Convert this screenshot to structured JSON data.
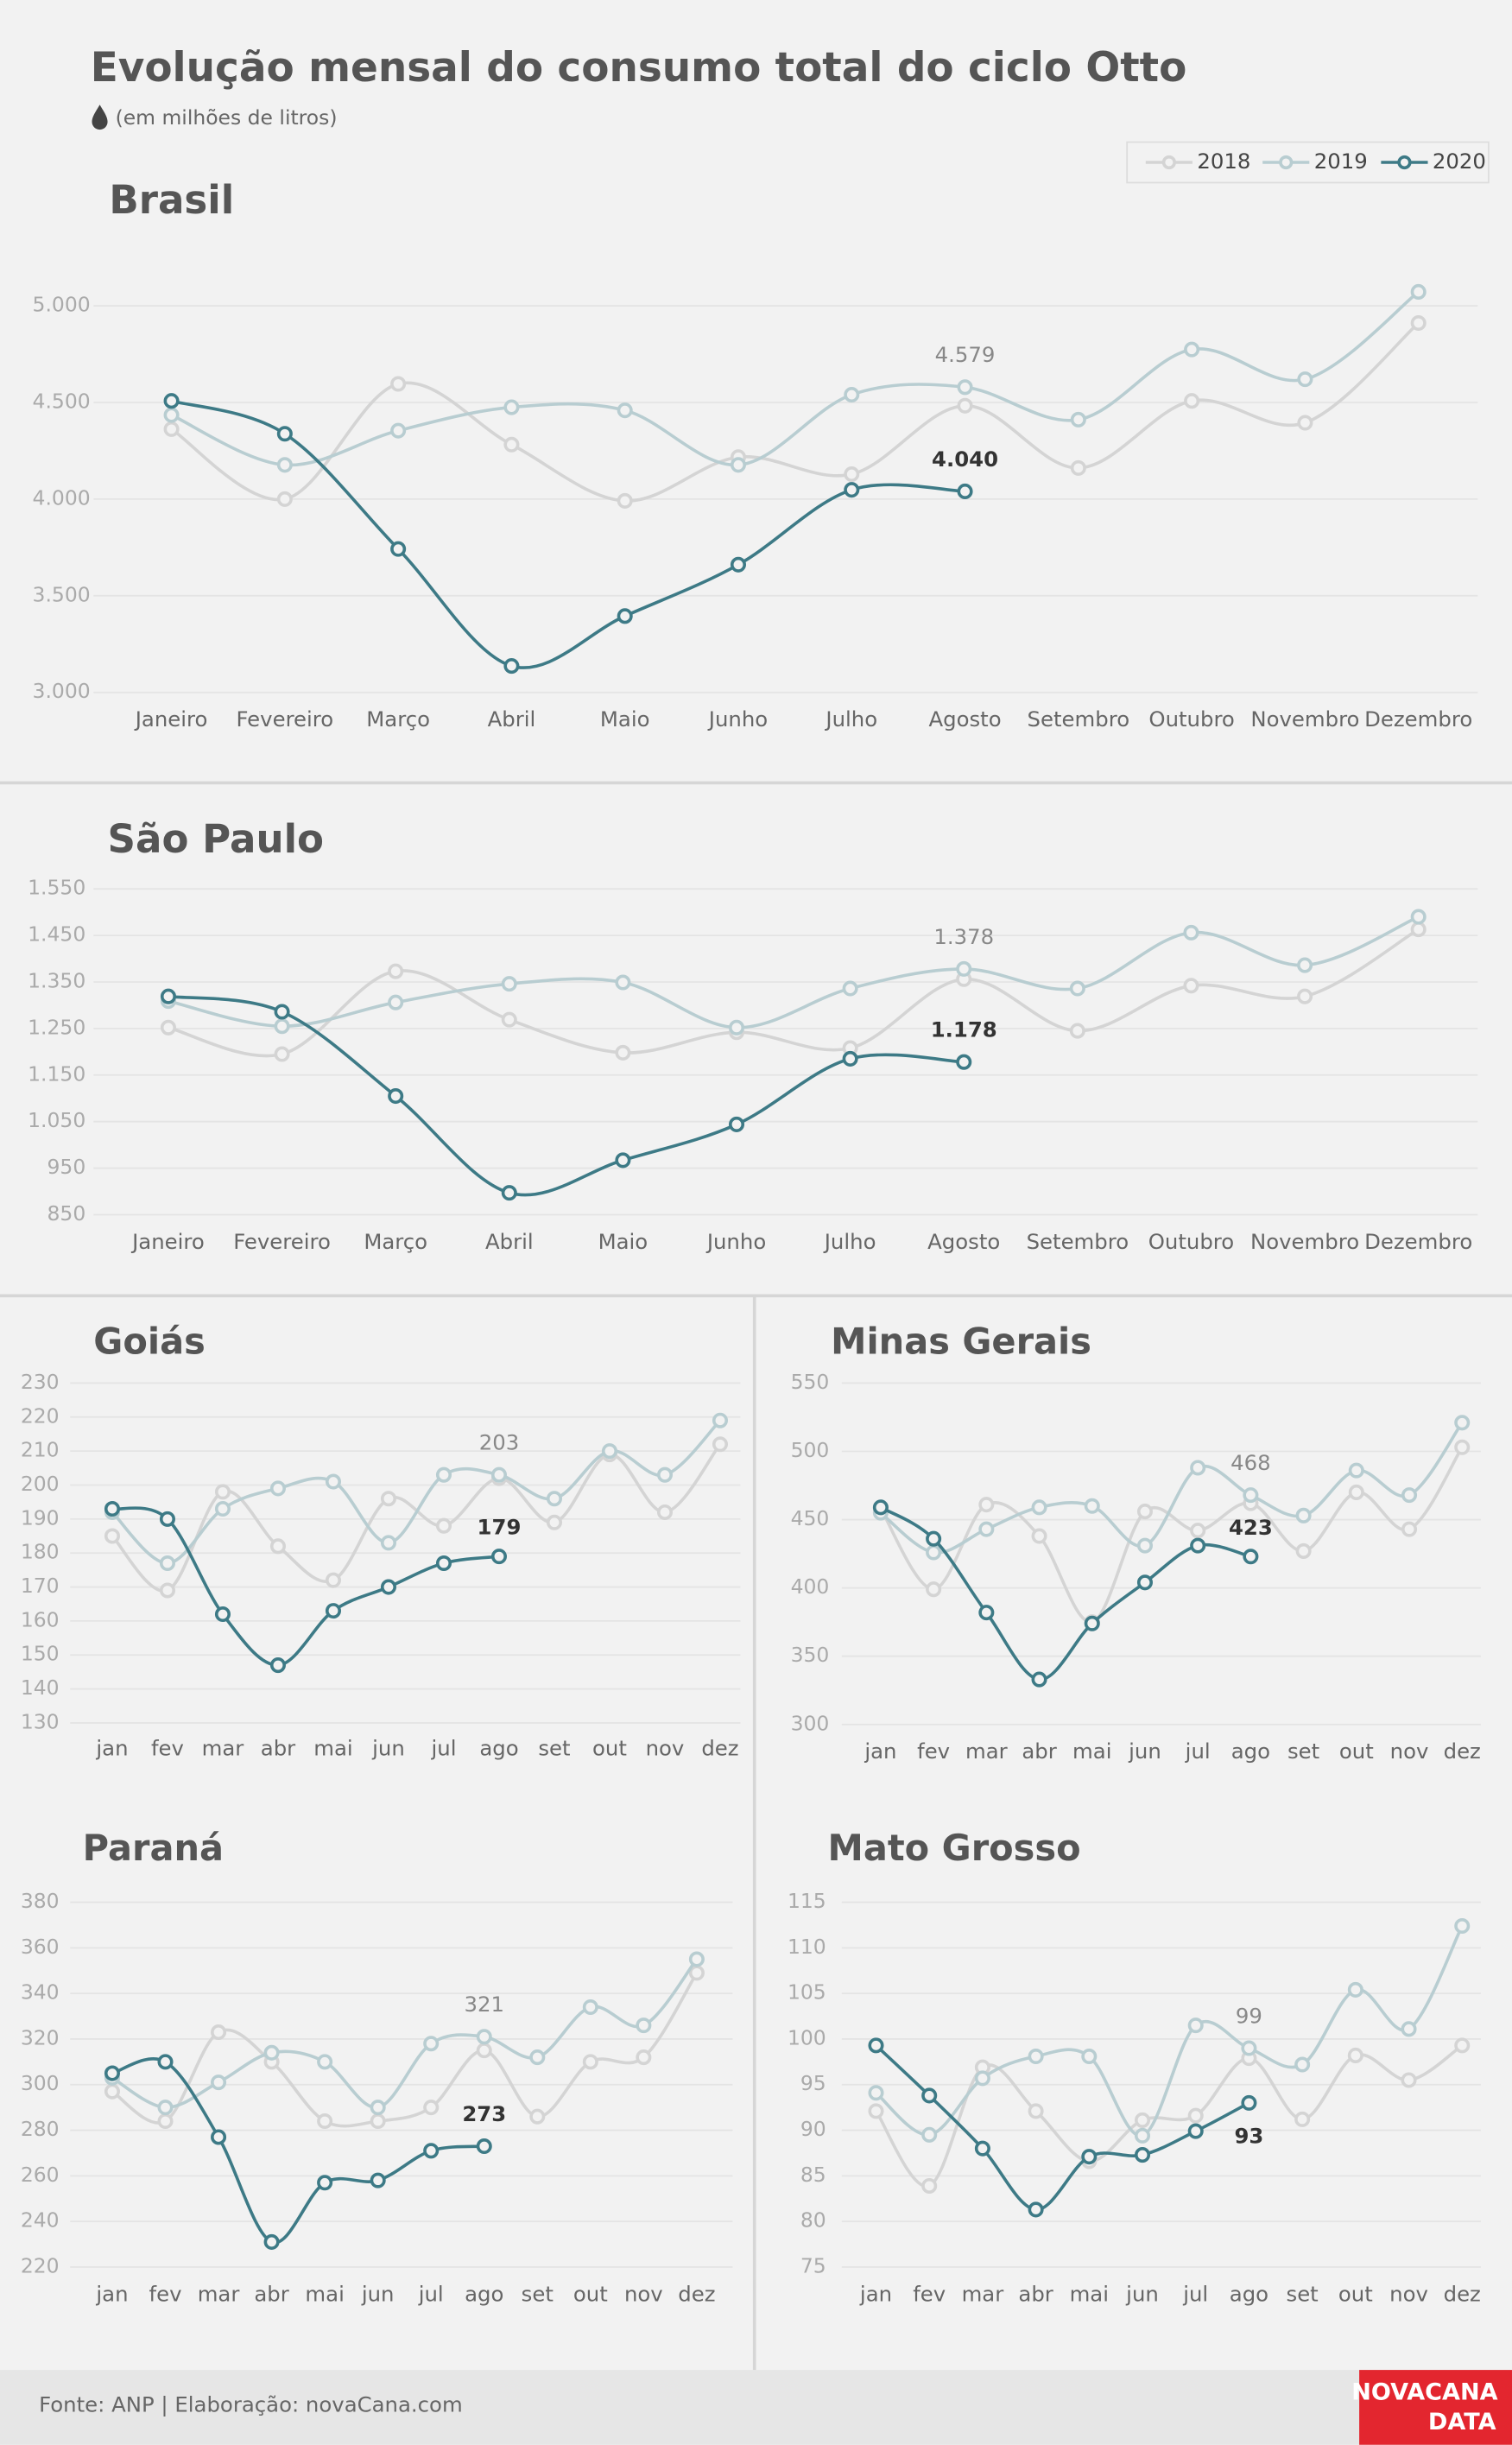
{
  "title": "Evolução mensal do consumo total do ciclo Otto",
  "subtitle": "(em milhões de litros)",
  "source": "Fonte: ANP | Elaboração: novaCana.com",
  "logo": [
    "NOVACANA",
    "DATA"
  ],
  "chart_data": [
    {
      "type": "line",
      "title": "Brasil",
      "categories": [
        "Janeiro",
        "Fevereiro",
        "Março",
        "Abril",
        "Maio",
        "Junho",
        "Julho",
        "Agosto",
        "Setembro",
        "Outubro",
        "Novembro",
        "Dezembro"
      ],
      "series": [
        {
          "name": "2018",
          "color": "#d4d4d4",
          "values": [
            4362,
            4000,
            4596,
            4282,
            3991,
            4217,
            4129,
            4483,
            4161,
            4508,
            4395,
            4911
          ]
        },
        {
          "name": "2019",
          "color": "#b8cdd1",
          "values": [
            4435,
            4177,
            4354,
            4475,
            4459,
            4177,
            4540,
            4579,
            4411,
            4774,
            4620,
            5072
          ],
          "value_labels": [
            null,
            null,
            null,
            null,
            null,
            null,
            null,
            "4.579",
            null,
            null,
            null,
            null
          ]
        },
        {
          "name": "2020",
          "color": "#3d7a86",
          "values": [
            4508,
            4338,
            3742,
            3137,
            3395,
            3661,
            4048,
            4040,
            null,
            null,
            null,
            null
          ],
          "value_labels": [
            null,
            null,
            null,
            null,
            null,
            null,
            null,
            "4.040",
            null,
            null,
            null,
            null
          ]
        }
      ],
      "ylim": [
        3000,
        5000
      ],
      "yticks": [
        {
          "value": 3000,
          "label": "3.000"
        },
        {
          "value": 3500,
          "label": "3.500"
        },
        {
          "value": 4000,
          "label": "4.000"
        },
        {
          "value": 4500,
          "label": "4.500"
        },
        {
          "value": 5000,
          "label": "5.000"
        }
      ],
      "grid": true
    },
    {
      "type": "line",
      "title": "São Paulo",
      "categories": [
        "Janeiro",
        "Fevereiro",
        "Março",
        "Abril",
        "Maio",
        "Junho",
        "Julho",
        "Agosto",
        "Setembro",
        "Outubro",
        "Novembro",
        "Dezembro"
      ],
      "series": [
        {
          "name": "2018",
          "color": "#d4d4d4",
          "values": [
            1252,
            1195,
            1373,
            1269,
            1198,
            1242,
            1208,
            1356,
            1245,
            1342,
            1319,
            1463
          ]
        },
        {
          "name": "2019",
          "color": "#b8cdd1",
          "values": [
            1309,
            1255,
            1306,
            1346,
            1349,
            1252,
            1336,
            1378,
            1336,
            1456,
            1386,
            1490
          ],
          "value_labels": [
            null,
            null,
            null,
            null,
            null,
            null,
            null,
            "1.378",
            null,
            null,
            null,
            null
          ]
        },
        {
          "name": "2020",
          "color": "#3d7a86",
          "values": [
            1319,
            1286,
            1105,
            897,
            967,
            1044,
            1185,
            1178,
            null,
            null,
            null,
            null
          ],
          "value_labels": [
            null,
            null,
            null,
            null,
            null,
            null,
            null,
            "1.178",
            null,
            null,
            null,
            null
          ]
        }
      ],
      "ylim": [
        850,
        1550
      ],
      "yticks": [
        850,
        950,
        {
          "value": 1050,
          "label": "1.050"
        },
        {
          "value": 1150,
          "label": "1.150"
        },
        {
          "value": 1250,
          "label": "1.250"
        },
        {
          "value": 1350,
          "label": "1.350"
        },
        {
          "value": 1450,
          "label": "1.450"
        },
        {
          "value": 1550,
          "label": "1.550"
        }
      ],
      "grid": true
    },
    {
      "type": "line",
      "title": "Goiás",
      "categories": [
        "jan",
        "fev",
        "mar",
        "abr",
        "mai",
        "jun",
        "jul",
        "ago",
        "set",
        "out",
        "nov",
        "dez"
      ],
      "series": [
        {
          "name": "2018",
          "color": "#d4d4d4",
          "values": [
            185,
            169,
            198,
            182,
            172,
            196,
            188,
            202,
            189,
            209,
            192,
            212
          ]
        },
        {
          "name": "2019",
          "color": "#b8cdd1",
          "values": [
            192,
            177,
            193,
            199,
            201,
            183,
            203,
            203,
            196,
            210,
            203,
            219
          ],
          "value_labels": [
            null,
            null,
            null,
            null,
            null,
            null,
            null,
            "203",
            null,
            null,
            null,
            null
          ]
        },
        {
          "name": "2020",
          "color": "#3d7a86",
          "values": [
            193,
            190,
            162,
            147,
            163,
            170,
            177,
            179,
            null,
            null,
            null,
            null
          ],
          "value_labels": [
            null,
            null,
            null,
            null,
            null,
            null,
            null,
            "179",
            null,
            null,
            null,
            null
          ]
        }
      ],
      "ylim": [
        130,
        230
      ],
      "yticks": [
        130,
        140,
        150,
        160,
        170,
        180,
        190,
        200,
        210,
        220,
        230
      ],
      "grid": true
    },
    {
      "type": "line",
      "title": "Minas Gerais",
      "categories": [
        "jan",
        "fev",
        "mar",
        "abr",
        "mai",
        "jun",
        "jul",
        "ago",
        "set",
        "out",
        "nov",
        "dez"
      ],
      "series": [
        {
          "name": "2018",
          "color": "#d4d4d4",
          "values": [
            458,
            399,
            461,
            438,
            375,
            456,
            442,
            462,
            427,
            470,
            443,
            503
          ]
        },
        {
          "name": "2019",
          "color": "#b8cdd1",
          "values": [
            455,
            426,
            443,
            459,
            460,
            431,
            488,
            468,
            453,
            486,
            468,
            521
          ],
          "value_labels": [
            null,
            null,
            null,
            null,
            null,
            null,
            null,
            "468",
            null,
            null,
            null,
            null
          ]
        },
        {
          "name": "2020",
          "color": "#3d7a86",
          "values": [
            459,
            436,
            382,
            333,
            374,
            404,
            431,
            423,
            null,
            null,
            null,
            null
          ],
          "value_labels": [
            null,
            null,
            null,
            null,
            null,
            null,
            null,
            "423",
            null,
            null,
            null,
            null
          ]
        }
      ],
      "ylim": [
        300,
        550
      ],
      "yticks": [
        300,
        350,
        400,
        450,
        500,
        550
      ],
      "grid": true
    },
    {
      "type": "line",
      "title": "Paraná",
      "categories": [
        "jan",
        "fev",
        "mar",
        "abr",
        "mai",
        "jun",
        "jul",
        "ago",
        "set",
        "out",
        "nov",
        "dez"
      ],
      "series": [
        {
          "name": "2018",
          "color": "#d4d4d4",
          "values": [
            297,
            284,
            323,
            310,
            284,
            284,
            290,
            315,
            286,
            310,
            312,
            349
          ]
        },
        {
          "name": "2019",
          "color": "#b8cdd1",
          "values": [
            303,
            290,
            301,
            314,
            310,
            290,
            318,
            321,
            312,
            334,
            326,
            355
          ],
          "value_labels": [
            null,
            null,
            null,
            null,
            null,
            null,
            null,
            "321",
            null,
            null,
            null,
            null
          ]
        },
        {
          "name": "2020",
          "color": "#3d7a86",
          "values": [
            305,
            310,
            277,
            231,
            257,
            258,
            271,
            273,
            null,
            null,
            null,
            null
          ],
          "value_labels": [
            null,
            null,
            null,
            null,
            null,
            null,
            null,
            "273",
            null,
            null,
            null,
            null
          ]
        }
      ],
      "ylim": [
        220,
        380
      ],
      "yticks": [
        220,
        240,
        260,
        280,
        300,
        320,
        340,
        360,
        380
      ],
      "grid": true
    },
    {
      "type": "line",
      "title": "Mato Grosso",
      "categories": [
        "jan",
        "fev",
        "mar",
        "abr",
        "mai",
        "jun",
        "jul",
        "ago",
        "set",
        "out",
        "nov",
        "dez"
      ],
      "series": [
        {
          "name": "2018",
          "color": "#d4d4d4",
          "values": [
            92.1,
            83.9,
            96.9,
            92.1,
            86.6,
            91.1,
            91.6,
            97.9,
            91.2,
            98.2,
            95.5,
            99.3
          ]
        },
        {
          "name": "2019",
          "color": "#b8cdd1",
          "values": [
            94.1,
            89.5,
            95.7,
            98.1,
            98.1,
            89.4,
            101.5,
            99,
            97.2,
            105.4,
            101.1,
            112.4
          ],
          "value_labels": [
            null,
            null,
            null,
            null,
            null,
            null,
            null,
            "99",
            null,
            null,
            null,
            null
          ]
        },
        {
          "name": "2020",
          "color": "#3d7a86",
          "values": [
            99.3,
            93.8,
            88.0,
            81.3,
            87.1,
            87.3,
            89.9,
            93,
            null,
            null,
            null,
            null
          ],
          "value_labels": [
            null,
            null,
            null,
            null,
            null,
            null,
            null,
            "93",
            null,
            null,
            null,
            null
          ]
        }
      ],
      "ylim": [
        75,
        115
      ],
      "yticks": [
        75,
        80,
        85,
        90,
        95,
        100,
        105,
        110,
        115
      ],
      "grid": true
    }
  ]
}
